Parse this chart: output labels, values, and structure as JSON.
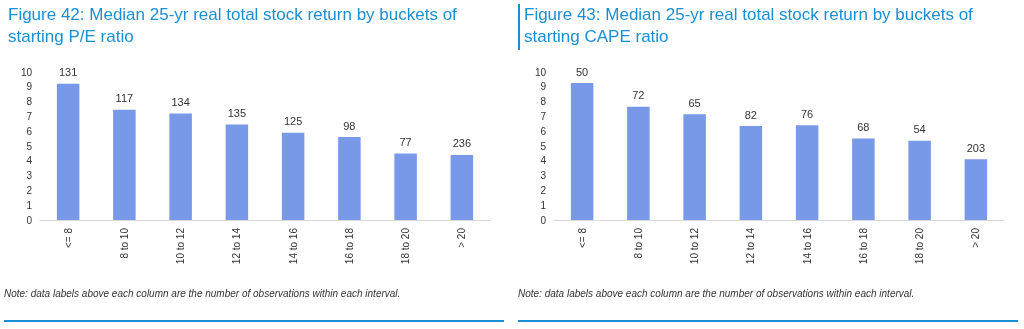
{
  "chart_data": [
    {
      "type": "bar",
      "title": "Figure 42: Median 25-yr real total stock return by buckets of starting P/E ratio",
      "categories": [
        "<= 8",
        "8 to 10",
        "10 to 12",
        "12 to 14",
        "14 to 16",
        "16 to 18",
        "18 to 20",
        "> 20"
      ],
      "values": [
        9.2,
        7.45,
        7.2,
        6.45,
        5.9,
        5.6,
        4.5,
        4.4
      ],
      "color": "#7799e8",
      "ylim": [
        0,
        10
      ],
      "yticks": [
        0,
        1,
        2,
        3,
        4,
        5,
        6,
        7,
        8,
        9,
        10
      ],
      "grid": false,
      "annotations": [
        {
          "text": "131",
          "x": "<= 8",
          "y": 9.2
        },
        {
          "text": "117",
          "x": "8 to 10",
          "y": 7.45
        },
        {
          "text": "134",
          "x": "10 to 12",
          "y": 7.2
        },
        {
          "text": "135",
          "x": "12 to 14",
          "y": 6.45
        },
        {
          "text": "125",
          "x": "14 to 16",
          "y": 5.9
        },
        {
          "text": "98",
          "x": "16 to 18",
          "y": 5.6
        },
        {
          "text": "77",
          "x": "18 to 20",
          "y": 4.5
        },
        {
          "text": "236",
          "x": "> 20",
          "y": 4.4
        },
        "Note: data labels above each column are the number of observations within each interval."
      ]
    },
    {
      "type": "bar",
      "title": "Figure 43: Median 25-yr real total stock return by buckets of starting CAPE ratio",
      "categories": [
        "<= 8",
        "8 to 10",
        "10 to 12",
        "12 to 14",
        "14 to 16",
        "16 to 18",
        "18 to 20",
        "> 20"
      ],
      "values": [
        9.25,
        7.65,
        7.15,
        6.35,
        6.4,
        5.5,
        5.35,
        4.1
      ],
      "color": "#7799e8",
      "ylim": [
        0,
        10
      ],
      "yticks": [
        0,
        1,
        2,
        3,
        4,
        5,
        6,
        7,
        8,
        9,
        10
      ],
      "grid": false,
      "annotations": [
        {
          "text": "50",
          "x": "<= 8",
          "y": 9.25
        },
        {
          "text": "72",
          "x": "8 to 10",
          "y": 7.65
        },
        {
          "text": "65",
          "x": "10 to 12",
          "y": 7.15
        },
        {
          "text": "82",
          "x": "12 to 14",
          "y": 6.35
        },
        {
          "text": "76",
          "x": "14 to 16",
          "y": 6.4
        },
        {
          "text": "68",
          "x": "16 to 18",
          "y": 5.5
        },
        {
          "text": "54",
          "x": "18 to 20",
          "y": 5.35
        },
        {
          "text": "203",
          "x": "> 20",
          "y": 4.1
        },
        "Note: data labels above each column are the number of observations within each interval."
      ]
    }
  ]
}
